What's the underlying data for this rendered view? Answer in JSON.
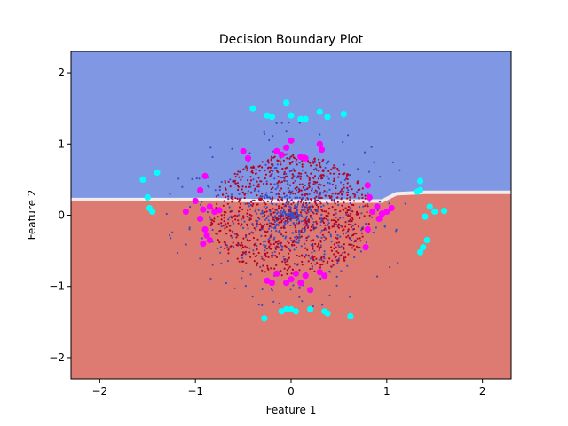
{
  "chart_data": {
    "type": "scatter",
    "title": "Decision Boundary Plot",
    "xlabel": "Feature 1",
    "ylabel": "Feature 2",
    "xlim": [
      -2.3,
      2.3
    ],
    "ylim": [
      -2.3,
      2.3
    ],
    "x_ticks": [
      -2,
      -1,
      0,
      1,
      2
    ],
    "y_ticks": [
      -2,
      -1,
      0,
      1,
      2
    ],
    "x_tick_labels": [
      "−2",
      "−1",
      "0",
      "1",
      "2"
    ],
    "y_tick_labels": [
      "−2",
      "−1",
      "0",
      "1",
      "2"
    ],
    "grid": false,
    "colors": {
      "region_upper": "#8097e4",
      "region_lower": "#dd7a72",
      "boundary": "#f2ecea",
      "dense_blue": "#3b4cc0",
      "dense_red": "#b40426",
      "highlight_magenta": "#ff00ff",
      "highlight_cyan": "#00ffff"
    },
    "decision_boundary": {
      "x": [
        -2.3,
        -0.8,
        -0.2,
        0.2,
        0.6,
        0.95,
        1.1,
        1.4,
        2.3
      ],
      "y": [
        0.22,
        0.22,
        0.2,
        0.2,
        0.2,
        0.2,
        0.3,
        0.32,
        0.32
      ]
    },
    "series": [
      {
        "marker": "small-dot",
        "color": "#3b4cc0",
        "distribution": "ring",
        "count": 700,
        "radius_range": [
          0.0,
          1.3
        ]
      },
      {
        "marker": "small-dot",
        "color": "#b40426",
        "distribution": "disk",
        "count": 900,
        "radius_range": [
          0.0,
          0.85
        ]
      },
      {
        "marker": "large-dot",
        "color": "#ff00ff",
        "points": [
          [
            -0.9,
            0.55
          ],
          [
            -0.95,
            0.35
          ],
          [
            -1.0,
            0.2
          ],
          [
            -1.1,
            0.05
          ],
          [
            -0.85,
            0.12
          ],
          [
            -0.8,
            0.05
          ],
          [
            -0.95,
            -0.05
          ],
          [
            -0.9,
            -0.2
          ],
          [
            -0.85,
            -0.35
          ],
          [
            -0.92,
            -0.4
          ],
          [
            -0.88,
            -0.28
          ],
          [
            -0.75,
            0.07
          ],
          [
            -0.92,
            0.08
          ],
          [
            -0.45,
            0.8
          ],
          [
            -0.5,
            0.9
          ],
          [
            -0.15,
            0.9
          ],
          [
            -0.1,
            0.85
          ],
          [
            -0.05,
            0.95
          ],
          [
            0.0,
            1.05
          ],
          [
            0.1,
            0.82
          ],
          [
            0.15,
            0.8
          ],
          [
            0.3,
            1.0
          ],
          [
            0.32,
            0.92
          ],
          [
            0.8,
            0.42
          ],
          [
            0.82,
            0.25
          ],
          [
            0.85,
            0.05
          ],
          [
            0.9,
            0.12
          ],
          [
            0.95,
            0.02
          ],
          [
            1.0,
            0.05
          ],
          [
            1.05,
            0.1
          ],
          [
            0.92,
            -0.05
          ],
          [
            0.8,
            -0.2
          ],
          [
            0.78,
            -0.45
          ],
          [
            -0.25,
            -0.92
          ],
          [
            -0.2,
            -0.95
          ],
          [
            -0.15,
            -0.82
          ],
          [
            0.0,
            -0.9
          ],
          [
            0.05,
            -0.82
          ],
          [
            0.1,
            -0.95
          ],
          [
            0.15,
            -0.85
          ],
          [
            -0.05,
            -0.95
          ],
          [
            0.3,
            -0.8
          ],
          [
            0.35,
            -0.85
          ],
          [
            0.2,
            -1.05
          ]
        ]
      },
      {
        "marker": "large-dot",
        "color": "#00ffff",
        "points": [
          [
            -0.4,
            1.5
          ],
          [
            -0.25,
            1.4
          ],
          [
            -0.2,
            1.38
          ],
          [
            -0.05,
            1.58
          ],
          [
            0.0,
            1.4
          ],
          [
            0.1,
            1.35
          ],
          [
            0.15,
            1.35
          ],
          [
            0.3,
            1.45
          ],
          [
            0.38,
            1.38
          ],
          [
            0.55,
            1.42
          ],
          [
            -1.55,
            0.5
          ],
          [
            -1.4,
            0.6
          ],
          [
            -1.5,
            0.25
          ],
          [
            -1.45,
            0.05
          ],
          [
            -1.48,
            0.1
          ],
          [
            1.35,
            0.48
          ],
          [
            1.35,
            0.35
          ],
          [
            1.32,
            0.33
          ],
          [
            1.45,
            0.12
          ],
          [
            1.5,
            0.05
          ],
          [
            1.6,
            0.06
          ],
          [
            1.4,
            -0.02
          ],
          [
            1.42,
            -0.35
          ],
          [
            1.38,
            -0.45
          ],
          [
            1.35,
            -0.52
          ],
          [
            -0.28,
            -1.45
          ],
          [
            -0.1,
            -1.35
          ],
          [
            -0.05,
            -1.32
          ],
          [
            0.0,
            -1.32
          ],
          [
            0.05,
            -1.35
          ],
          [
            0.2,
            -1.32
          ],
          [
            0.35,
            -1.35
          ],
          [
            0.62,
            -1.42
          ],
          [
            0.38,
            -1.38
          ]
        ]
      }
    ]
  }
}
